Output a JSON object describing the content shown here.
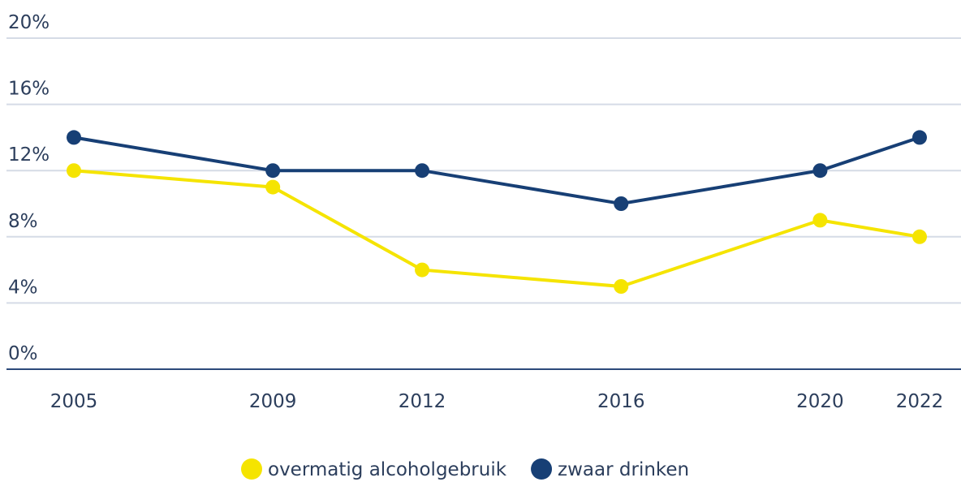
{
  "chart_data": {
    "type": "line",
    "x": [
      2005,
      2009,
      2012,
      2016,
      2020,
      2022
    ],
    "series": [
      {
        "name": "overmatig alcoholgebruik",
        "color": "#f5e400",
        "values": [
          12,
          11,
          6,
          5,
          9,
          8
        ]
      },
      {
        "name": "zwaar drinken",
        "color": "#173f75",
        "values": [
          14,
          12,
          12,
          10,
          12,
          14
        ]
      }
    ],
    "xlim": [
      2005,
      2022
    ],
    "xticks": [
      2005,
      2009,
      2012,
      2016,
      2020,
      2022
    ],
    "ylim": [
      0,
      20
    ],
    "yticks": [
      {
        "value": 0,
        "label": "0%"
      },
      {
        "value": 4,
        "label": "4%"
      },
      {
        "value": 8,
        "label": "8%"
      },
      {
        "value": 12,
        "label": "12%"
      },
      {
        "value": 16,
        "label": "16%"
      },
      {
        "value": 20,
        "label": "20%"
      }
    ],
    "grid": true,
    "legend": "bottom"
  }
}
